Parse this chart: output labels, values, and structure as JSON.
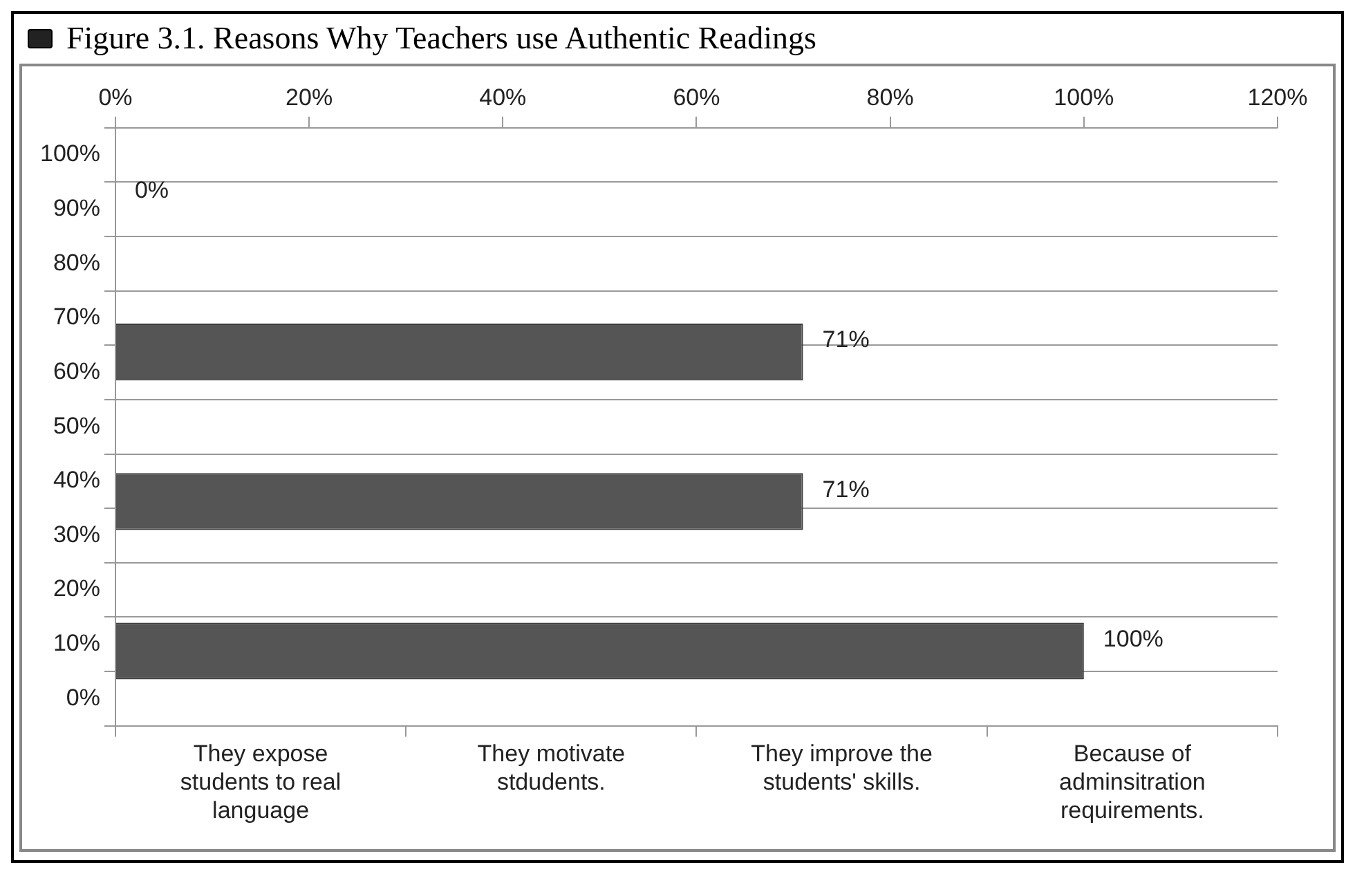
{
  "chart_data": {
    "type": "bar",
    "orientation": "horizontal",
    "title": "Figure 3.1. Reasons Why Teachers use Authentic Readings",
    "categories": [
      null,
      null,
      null,
      null
    ],
    "annotations": [
      "They expose students to real language",
      "They motivate stdudents.",
      "They improve the students' skills.",
      "Because of adminsitration requirements."
    ],
    "values": [
      0,
      71,
      71,
      100
    ],
    "color": "#555555",
    "value_labels": [
      "0%",
      "71%",
      "71%",
      "100%"
    ],
    "xlim": [
      0,
      120
    ],
    "xticks": [
      {
        "value": 0,
        "label": "0%"
      },
      {
        "value": 20,
        "label": "20%"
      },
      {
        "value": 40,
        "label": "40%"
      },
      {
        "value": 60,
        "label": "60%"
      },
      {
        "value": 80,
        "label": "80%"
      },
      {
        "value": 100,
        "label": "100%"
      },
      {
        "value": 120,
        "label": "120%"
      }
    ],
    "y2lim": [
      0,
      100
    ],
    "y2ticks": [
      {
        "value": 0,
        "label": "0%"
      },
      {
        "value": 10,
        "label": "10%"
      },
      {
        "value": 20,
        "label": "20%"
      },
      {
        "value": 30,
        "label": "30%"
      },
      {
        "value": 40,
        "label": "40%"
      },
      {
        "value": 50,
        "label": "50%"
      },
      {
        "value": 60,
        "label": "60%"
      },
      {
        "value": 70,
        "label": "70%"
      },
      {
        "value": 80,
        "label": "80%"
      },
      {
        "value": 90,
        "label": "90%"
      },
      {
        "value": 100,
        "label": "100%"
      }
    ],
    "grid": "y",
    "legend": false
  }
}
